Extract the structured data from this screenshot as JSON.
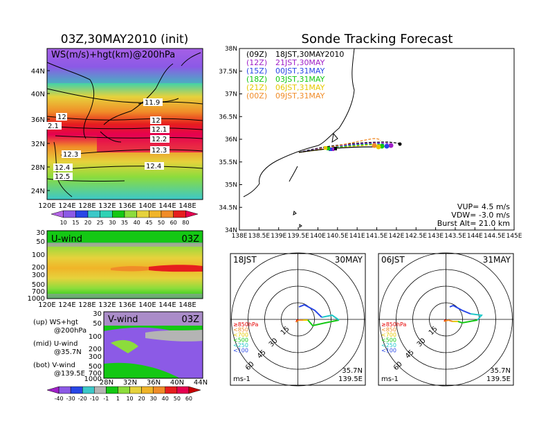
{
  "left_title": "03Z,30MAY2010 (init)",
  "right_title": "Sonde Tracking Forecast",
  "top_map": {
    "label": "WS(m/s)+hgt(km)@200hPa",
    "lat_ticks": [
      "44N",
      "40N",
      "36N",
      "32N",
      "28N",
      "24N"
    ],
    "lon_ticks": [
      "120E",
      "124E",
      "128E",
      "132E",
      "136E",
      "140E",
      "144E",
      "148E"
    ],
    "contour_labels": [
      "11.9",
      "12",
      "12",
      "12.1",
      "12.2",
      "12.3",
      "12.3",
      "12.4",
      "12.4",
      "12.5",
      "2.1"
    ],
    "colorbar": [
      "10",
      "15",
      "20",
      "25",
      "30",
      "35",
      "40",
      "45",
      "50",
      "60",
      "80"
    ]
  },
  "u_panel": {
    "label": "U-wind",
    "time": "03Z",
    "p_ticks": [
      "30",
      "50",
      "100",
      "200",
      "300",
      "500",
      "700",
      "1000"
    ],
    "lon_ticks": [
      "120E",
      "124E",
      "128E",
      "132E",
      "136E",
      "140E",
      "144E",
      "148E"
    ]
  },
  "v_panel": {
    "label": "V-wind",
    "time": "03Z",
    "p_ticks": [
      "30",
      "50",
      "100",
      "200",
      "300",
      "500",
      "700",
      "1000"
    ],
    "lat_ticks": [
      "28N",
      "32N",
      "36N",
      "40N",
      "44N"
    ],
    "colorbar": [
      "-40",
      "-30",
      "-20",
      "-10",
      "-1",
      "1",
      "10",
      "20",
      "30",
      "40",
      "50",
      "60"
    ]
  },
  "legend_notes": [
    {
      "a": "(up) WS+hgt",
      "b": "@200hPa"
    },
    {
      "a": "(mid) U-wind",
      "b": "@35.7N"
    },
    {
      "a": "(bot) V-wind",
      "b": "@139.5E"
    }
  ],
  "track_map": {
    "lat_ticks": [
      "38N",
      "37.5N",
      "37N",
      "36.5N",
      "36N",
      "35.5N",
      "35N",
      "34.5N",
      "34N"
    ],
    "lon_ticks": [
      "138E",
      "138.5E",
      "139E",
      "139.5E",
      "140E",
      "140.5E",
      "141E",
      "141.5E",
      "142E",
      "142.5E",
      "143E",
      "143.5E",
      "144E",
      "144.5E",
      "145E"
    ],
    "runs": [
      {
        "z": "(09Z)",
        "jst": "18JST,30MAY2010",
        "color": "#000000"
      },
      {
        "z": "(12Z)",
        "jst": "21JST,30MAY",
        "color": "#a020c8"
      },
      {
        "z": "(15Z)",
        "jst": "00JST,31MAY",
        "color": "#2846e6"
      },
      {
        "z": "(18Z)",
        "jst": "03JST,31MAY",
        "color": "#14c814"
      },
      {
        "z": "(21Z)",
        "jst": "06JST,31MAY",
        "color": "#e6c800"
      },
      {
        "z": "(00Z)",
        "jst": "09JST,31MAY",
        "color": "#f08c28"
      }
    ],
    "vup": "VUP= 4.5 m/s",
    "vdw": "VDW= -3.0 m/s",
    "burst": "Burst Alt= 21.0 km"
  },
  "hodo1": {
    "time": "18JST",
    "date": "30MAY",
    "lat": "35.7N",
    "lon": "139.5E",
    "unit": "ms-1",
    "rings": [
      "15",
      "30",
      "45",
      "60"
    ]
  },
  "hodo2": {
    "time": "06JST",
    "date": "31MAY",
    "lat": "35.7N",
    "lon": "139.5E",
    "unit": "ms-1",
    "rings": [
      "15",
      "30",
      "45",
      "60"
    ]
  },
  "hodo_levels": [
    {
      "t": "≥850hPa",
      "c": "#e60000"
    },
    {
      "t": "<850",
      "c": "#f08c28"
    },
    {
      "t": "<700",
      "c": "#e6c800"
    },
    {
      "t": "<500",
      "c": "#14c814"
    },
    {
      "t": "<250",
      "c": "#20c8c8"
    },
    {
      "t": "<100",
      "c": "#2846e6"
    }
  ]
}
